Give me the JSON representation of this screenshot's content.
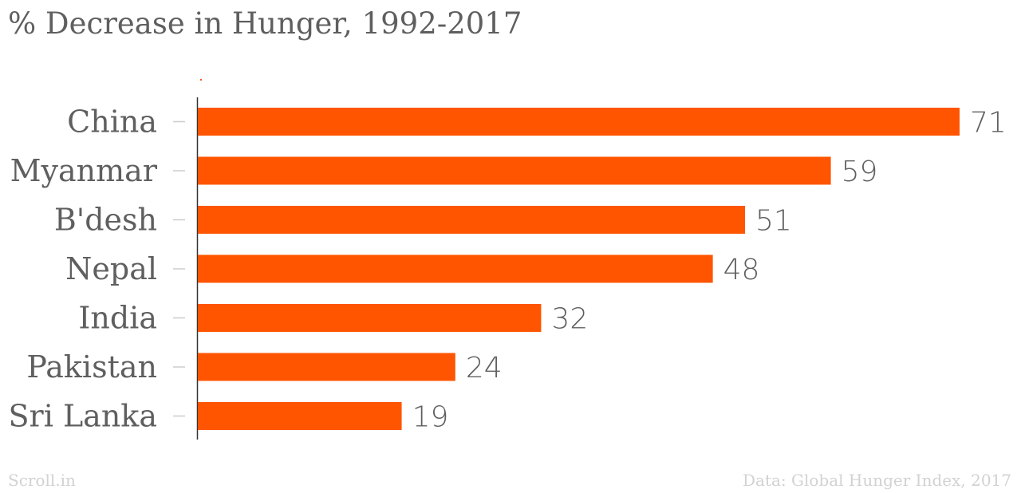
{
  "title": "% Decrease in Hunger, 1992-2017",
  "footer": {
    "source_left": "Scroll.in",
    "source_right": "Data: Global Hunger Index, 2017"
  },
  "colors": {
    "bar": "#ff5500",
    "text": "#5f5f5f",
    "footer": "#d2d2d2",
    "axis": "#333333",
    "tick": "#cccccc"
  },
  "chart_data": {
    "type": "bar",
    "orientation": "horizontal",
    "title": "% Decrease in Hunger, 1992-2017",
    "categories": [
      "China",
      "Myanmar",
      "B'desh",
      "Nepal",
      "India",
      "Pakistan",
      "Sri Lanka"
    ],
    "values": [
      71,
      59,
      51,
      48,
      32,
      24,
      19
    ],
    "xlim": [
      0,
      71
    ],
    "data_labels": true,
    "grid": false,
    "legend": "none"
  }
}
